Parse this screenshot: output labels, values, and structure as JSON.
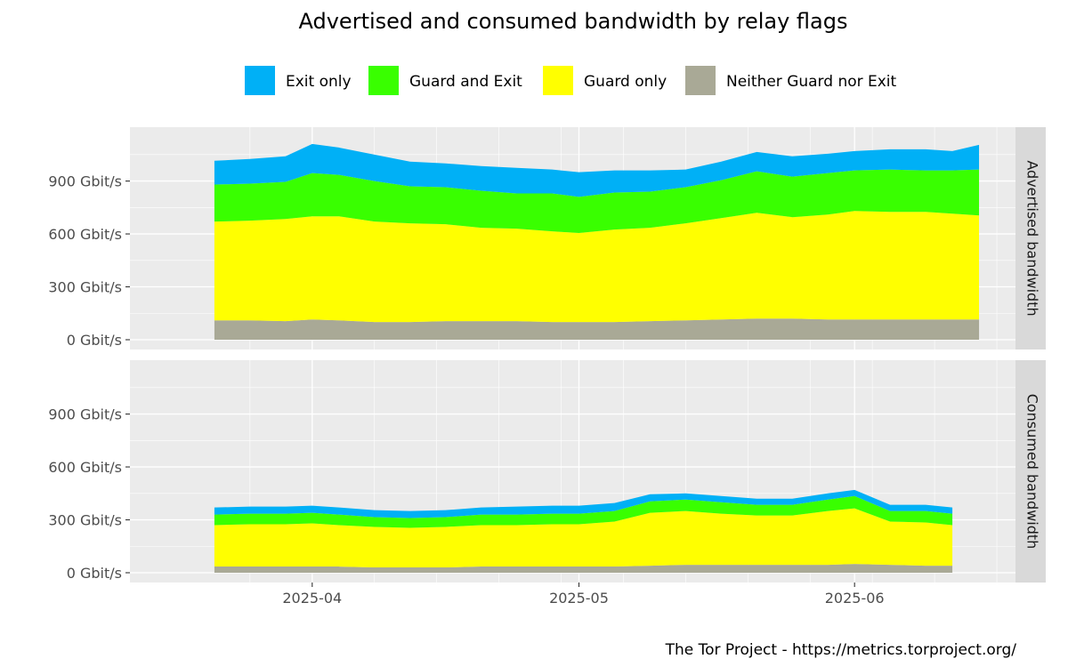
{
  "chart_data": {
    "type": "area",
    "title": "Advertised and consumed bandwidth by relay flags",
    "caption": "The Tor Project - https://metrics.torproject.org/",
    "stacked": true,
    "legend_position": "top",
    "grid": true,
    "x_start": "2025-03-21",
    "x_end": "2025-06-15",
    "ylim": [
      0,
      1150
    ],
    "y_ticks": [
      0,
      300,
      600,
      900
    ],
    "y_tick_labels": [
      "0 Gbit/s",
      "300 Gbit/s",
      "600 Gbit/s",
      "900 Gbit/s"
    ],
    "x_ticks": [
      "2025-04-01",
      "2025-05-01",
      "2025-06-01"
    ],
    "x_tick_labels": [
      "2025-04",
      "2025-05",
      "2025-06"
    ],
    "series": [
      {
        "name": "Exit only",
        "color": "#00b0f6"
      },
      {
        "name": "Guard and Exit",
        "color": "#39ff00"
      },
      {
        "name": "Guard only",
        "color": "#ffff00"
      },
      {
        "name": "Neither Guard nor Exit",
        "color": "#a9a996"
      }
    ],
    "panels": [
      {
        "label": "Advertised bandwidth",
        "x": [
          "2025-03-21",
          "2025-03-25",
          "2025-03-29",
          "2025-04-01",
          "2025-04-04",
          "2025-04-08",
          "2025-04-12",
          "2025-04-16",
          "2025-04-20",
          "2025-04-24",
          "2025-04-28",
          "2025-05-01",
          "2025-05-05",
          "2025-05-09",
          "2025-05-13",
          "2025-05-17",
          "2025-05-21",
          "2025-05-25",
          "2025-05-29",
          "2025-06-01",
          "2025-06-05",
          "2025-06-09",
          "2025-06-12",
          "2025-06-15"
        ],
        "values": {
          "Neither Guard nor Exit": [
            110,
            110,
            105,
            115,
            110,
            100,
            100,
            105,
            105,
            105,
            100,
            100,
            100,
            105,
            110,
            115,
            120,
            120,
            115,
            115,
            115,
            115,
            115,
            115
          ],
          "Guard only": [
            560,
            565,
            580,
            585,
            590,
            570,
            560,
            550,
            530,
            525,
            515,
            505,
            525,
            530,
            550,
            575,
            600,
            575,
            595,
            615,
            610,
            610,
            600,
            590
          ],
          "Guard and Exit": [
            210,
            210,
            210,
            245,
            235,
            230,
            210,
            210,
            210,
            200,
            215,
            205,
            210,
            205,
            205,
            215,
            235,
            230,
            235,
            230,
            240,
            235,
            245,
            260
          ],
          "Exit only": [
            135,
            140,
            145,
            165,
            155,
            150,
            140,
            135,
            140,
            145,
            135,
            140,
            125,
            120,
            100,
            105,
            110,
            115,
            110,
            110,
            115,
            120,
            110,
            140
          ]
        }
      },
      {
        "label": "Consumed bandwidth",
        "x": [
          "2025-03-21",
          "2025-03-25",
          "2025-03-29",
          "2025-04-01",
          "2025-04-04",
          "2025-04-08",
          "2025-04-12",
          "2025-04-16",
          "2025-04-20",
          "2025-04-24",
          "2025-04-28",
          "2025-05-01",
          "2025-05-05",
          "2025-05-09",
          "2025-05-13",
          "2025-05-17",
          "2025-05-21",
          "2025-05-25",
          "2025-05-29",
          "2025-06-01",
          "2025-06-05",
          "2025-06-09",
          "2025-06-12"
        ],
        "values": {
          "Neither Guard nor Exit": [
            35,
            35,
            35,
            35,
            35,
            30,
            30,
            30,
            35,
            35,
            35,
            35,
            35,
            40,
            45,
            45,
            45,
            45,
            45,
            50,
            45,
            40,
            40
          ],
          "Guard only": [
            235,
            240,
            240,
            245,
            235,
            230,
            225,
            230,
            235,
            235,
            240,
            240,
            255,
            300,
            305,
            290,
            280,
            280,
            305,
            315,
            245,
            245,
            230
          ],
          "Guard and Exit": [
            60,
            60,
            60,
            60,
            60,
            55,
            55,
            55,
            60,
            60,
            60,
            60,
            60,
            65,
            65,
            65,
            60,
            60,
            65,
            70,
            60,
            65,
            65
          ],
          "Exit only": [
            40,
            40,
            40,
            40,
            40,
            40,
            40,
            40,
            40,
            45,
            45,
            45,
            45,
            40,
            35,
            35,
            35,
            35,
            35,
            35,
            35,
            35,
            35
          ]
        }
      }
    ]
  }
}
